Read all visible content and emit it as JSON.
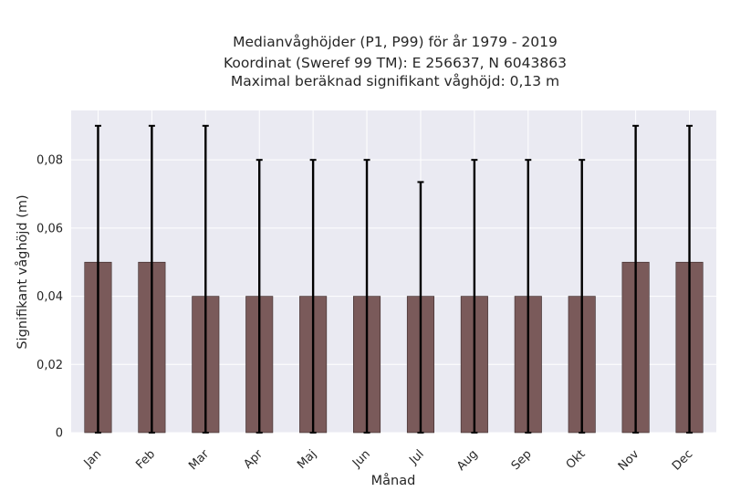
{
  "chart_data": {
    "type": "bar",
    "title_lines": [
      "Medianvåghöjder (P1, P99) för år 1979 - 2019",
      "Koordinat (Sweref 99 TM): E 256637, N 6043863",
      "Maximal beräknad signifikant våghöjd: 0,13 m"
    ],
    "xlabel": "Månad",
    "ylabel": "Signifikant våghöjd (m)",
    "categories": [
      "Jan",
      "Feb",
      "Mar",
      "Apr",
      "Maj",
      "Jun",
      "Jul",
      "Aug",
      "Sep",
      "Okt",
      "Nov",
      "Dec"
    ],
    "values": [
      0.05,
      0.05,
      0.04,
      0.04,
      0.04,
      0.04,
      0.04,
      0.04,
      0.04,
      0.04,
      0.05,
      0.05
    ],
    "error_low": [
      0,
      0,
      0,
      0,
      0,
      0,
      0,
      0,
      0,
      0,
      0,
      0
    ],
    "error_high": [
      0.09,
      0.09,
      0.09,
      0.08,
      0.08,
      0.08,
      0.0735,
      0.08,
      0.08,
      0.08,
      0.09,
      0.09
    ],
    "yticks": [
      0,
      0.02,
      0.04,
      0.06,
      0.08
    ],
    "ytick_labels": [
      "0",
      "0,02",
      "0,04",
      "0,06",
      "0,08"
    ],
    "ylim": [
      0,
      0.0945
    ],
    "grid": true,
    "bar_color": "#7a5a5a",
    "error_color": "#000000",
    "background_color": "#eaeaf2"
  }
}
